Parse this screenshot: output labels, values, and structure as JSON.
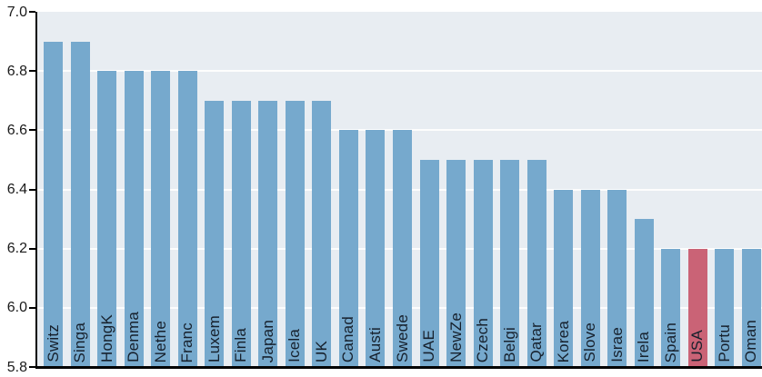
{
  "chart_data": {
    "type": "bar",
    "categories": [
      "Switz",
      "Singa",
      "HongK",
      "Denma",
      "Nethe",
      "Franc",
      "Luxem",
      "Finla",
      "Japan",
      "Icela",
      "UK",
      "Canad",
      "Austi",
      "Swede",
      "UAE",
      "NewZe",
      "Czech",
      "Belgi",
      "Qatar",
      "Korea",
      "Slove",
      "Israe",
      "Irela",
      "Spain",
      "USA",
      "Portu",
      "Oman"
    ],
    "values": [
      6.9,
      6.9,
      6.8,
      6.8,
      6.8,
      6.8,
      6.7,
      6.7,
      6.7,
      6.7,
      6.7,
      6.6,
      6.6,
      6.6,
      6.5,
      6.5,
      6.5,
      6.5,
      6.5,
      6.4,
      6.4,
      6.4,
      6.3,
      6.2,
      6.2,
      6.2,
      6.2
    ],
    "highlight_index": 24,
    "highlight_category": "USA",
    "title": "",
    "xlabel": "",
    "ylabel": "",
    "ylim": [
      5.8,
      7.0
    ],
    "ytick_labels": [
      "5.8",
      "6.0",
      "6.2",
      "6.4",
      "6.6",
      "6.8",
      "7.0"
    ],
    "yticks": [
      5.8,
      6.0,
      6.2,
      6.4,
      6.6,
      6.8,
      7.0
    ],
    "grid": "horizontal white lines at each 0.2 step",
    "legend": "none",
    "colors": {
      "bar": "#76a9cd",
      "highlight_bar": "#ca6376",
      "plot_background": "#e8edf2",
      "gridline": "#fdfdfd",
      "axis": "#000000",
      "ytick_label_color": "#1a1a1a",
      "bar_label_color": "#16202c"
    }
  }
}
